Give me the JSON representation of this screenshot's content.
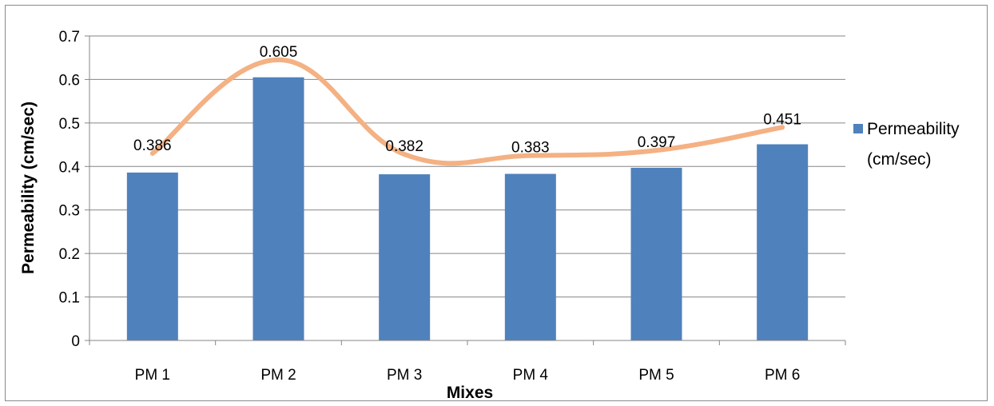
{
  "chart_data": {
    "type": "bar",
    "categories": [
      "PM 1",
      "PM 2",
      "PM 3",
      "PM 4",
      "PM 5",
      "PM 6"
    ],
    "series": [
      {
        "name": "Permeability (cm/sec)",
        "values": [
          0.386,
          0.605,
          0.382,
          0.383,
          0.397,
          0.451
        ],
        "color": "#4f81bd"
      }
    ],
    "data_labels": [
      "0.386",
      "0.605",
      "0.382",
      "0.383",
      "0.397",
      "0.451"
    ],
    "trend_line": {
      "type": "smoothed line",
      "color": "#f4b183",
      "values": [
        0.43,
        0.645,
        0.428,
        0.425,
        0.437,
        0.49
      ]
    },
    "xlabel": "Mixes",
    "ylabel": "Permeability (cm/sec)",
    "ylim": [
      0,
      0.7
    ],
    "yticks": [
      "0",
      "0.1",
      "0.2",
      "0.3",
      "0.4",
      "0.5",
      "0.6",
      "0.7"
    ],
    "grid": true,
    "legend": {
      "position": "right",
      "lines": [
        "Permeability",
        "(cm/sec)"
      ]
    }
  }
}
